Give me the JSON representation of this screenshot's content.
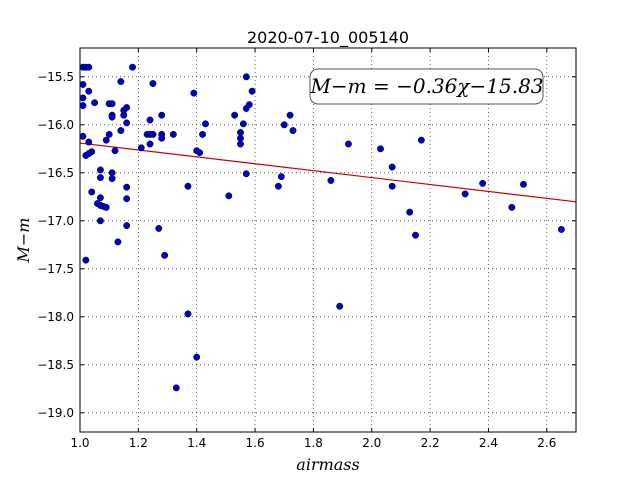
{
  "chart_data": {
    "type": "scatter",
    "title": "2020-07-10_005140",
    "xlabel": "airmass",
    "ylabel": "M−m",
    "xlim": [
      1.0,
      2.7
    ],
    "ylim": [
      -15.2,
      -19.2
    ],
    "y_inverted": true,
    "grid": true,
    "grid_style": "dotted",
    "x_ticks": [
      1.0,
      1.2,
      1.4,
      1.6,
      1.8,
      2.0,
      2.2,
      2.4,
      2.6
    ],
    "x_tick_labels": [
      "1.0",
      "1.2",
      "1.4",
      "1.6",
      "1.8",
      "2.0",
      "2.2",
      "2.4",
      "2.6"
    ],
    "y_ticks": [
      -15.5,
      -16.0,
      -16.5,
      -17.0,
      -17.5,
      -18.0,
      -18.5,
      -19.0
    ],
    "y_tick_labels": [
      "−15.5",
      "−16.0",
      "−16.5",
      "−17.0",
      "−17.5",
      "−18.0",
      "−18.5",
      "−19.0"
    ],
    "point_color": "#0000cc",
    "fit_color": "#cc0000",
    "fit_line": {
      "slope": -0.36,
      "intercept": -15.83
    },
    "annotation": "M−m = −0.36χ−15.83",
    "points": [
      {
        "x": 1.01,
        "y": -15.4
      },
      {
        "x": 1.02,
        "y": -15.4
      },
      {
        "x": 1.03,
        "y": -15.4
      },
      {
        "x": 1.01,
        "y": -15.58
      },
      {
        "x": 1.03,
        "y": -15.65
      },
      {
        "x": 1.01,
        "y": -15.72
      },
      {
        "x": 1.01,
        "y": -15.8
      },
      {
        "x": 1.05,
        "y": -15.77
      },
      {
        "x": 1.01,
        "y": -16.12
      },
      {
        "x": 1.03,
        "y": -16.18
      },
      {
        "x": 1.04,
        "y": -16.28
      },
      {
        "x": 1.02,
        "y": -16.32
      },
      {
        "x": 1.03,
        "y": -16.3
      },
      {
        "x": 1.04,
        "y": -16.7
      },
      {
        "x": 1.06,
        "y": -16.82
      },
      {
        "x": 1.07,
        "y": -16.76
      },
      {
        "x": 1.07,
        "y": -16.84
      },
      {
        "x": 1.08,
        "y": -16.85
      },
      {
        "x": 1.09,
        "y": -16.86
      },
      {
        "x": 1.07,
        "y": -17.0
      },
      {
        "x": 1.07,
        "y": -16.47
      },
      {
        "x": 1.07,
        "y": -16.55
      },
      {
        "x": 1.09,
        "y": -16.16
      },
      {
        "x": 1.1,
        "y": -15.78
      },
      {
        "x": 1.11,
        "y": -15.78
      },
      {
        "x": 1.11,
        "y": -15.9
      },
      {
        "x": 1.11,
        "y": -15.92
      },
      {
        "x": 1.1,
        "y": -16.1
      },
      {
        "x": 1.12,
        "y": -16.27
      },
      {
        "x": 1.11,
        "y": -16.5
      },
      {
        "x": 1.11,
        "y": -16.56
      },
      {
        "x": 1.14,
        "y": -15.55
      },
      {
        "x": 1.15,
        "y": -15.85
      },
      {
        "x": 1.16,
        "y": -15.82
      },
      {
        "x": 1.15,
        "y": -15.9
      },
      {
        "x": 1.16,
        "y": -15.98
      },
      {
        "x": 1.14,
        "y": -16.06
      },
      {
        "x": 1.16,
        "y": -16.65
      },
      {
        "x": 1.16,
        "y": -16.77
      },
      {
        "x": 1.16,
        "y": -17.05
      },
      {
        "x": 1.13,
        "y": -17.22
      },
      {
        "x": 1.02,
        "y": -17.41
      },
      {
        "x": 1.18,
        "y": -15.4
      },
      {
        "x": 1.21,
        "y": -16.24
      },
      {
        "x": 1.23,
        "y": -16.1
      },
      {
        "x": 1.24,
        "y": -15.95
      },
      {
        "x": 1.24,
        "y": -16.1
      },
      {
        "x": 1.25,
        "y": -16.1
      },
      {
        "x": 1.24,
        "y": -16.2
      },
      {
        "x": 1.25,
        "y": -15.57
      },
      {
        "x": 1.28,
        "y": -15.9
      },
      {
        "x": 1.28,
        "y": -16.1
      },
      {
        "x": 1.28,
        "y": -16.14
      },
      {
        "x": 1.27,
        "y": -17.08
      },
      {
        "x": 1.29,
        "y": -17.36
      },
      {
        "x": 1.32,
        "y": -16.1
      },
      {
        "x": 1.33,
        "y": -18.74
      },
      {
        "x": 1.37,
        "y": -16.64
      },
      {
        "x": 1.37,
        "y": -17.97
      },
      {
        "x": 1.39,
        "y": -15.67
      },
      {
        "x": 1.4,
        "y": -16.27
      },
      {
        "x": 1.41,
        "y": -16.29
      },
      {
        "x": 1.42,
        "y": -16.1
      },
      {
        "x": 1.43,
        "y": -15.99
      },
      {
        "x": 1.4,
        "y": -18.42
      },
      {
        "x": 1.51,
        "y": -16.74
      },
      {
        "x": 1.53,
        "y": -15.9
      },
      {
        "x": 1.55,
        "y": -16.08
      },
      {
        "x": 1.55,
        "y": -16.14
      },
      {
        "x": 1.56,
        "y": -15.99
      },
      {
        "x": 1.55,
        "y": -16.2
      },
      {
        "x": 1.57,
        "y": -15.5
      },
      {
        "x": 1.58,
        "y": -15.79
      },
      {
        "x": 1.57,
        "y": -15.83
      },
      {
        "x": 1.59,
        "y": -15.65
      },
      {
        "x": 1.57,
        "y": -16.51
      },
      {
        "x": 1.68,
        "y": -16.64
      },
      {
        "x": 1.69,
        "y": -16.54
      },
      {
        "x": 1.7,
        "y": -16.0
      },
      {
        "x": 1.72,
        "y": -15.9
      },
      {
        "x": 1.73,
        "y": -16.06
      },
      {
        "x": 1.86,
        "y": -16.58
      },
      {
        "x": 1.89,
        "y": -17.89
      },
      {
        "x": 1.92,
        "y": -16.2
      },
      {
        "x": 2.03,
        "y": -16.25
      },
      {
        "x": 2.07,
        "y": -16.64
      },
      {
        "x": 2.07,
        "y": -16.44
      },
      {
        "x": 2.13,
        "y": -16.91
      },
      {
        "x": 2.15,
        "y": -17.15
      },
      {
        "x": 2.17,
        "y": -16.16
      },
      {
        "x": 2.32,
        "y": -16.72
      },
      {
        "x": 2.38,
        "y": -16.61
      },
      {
        "x": 2.48,
        "y": -16.86
      },
      {
        "x": 2.52,
        "y": -16.62
      },
      {
        "x": 2.65,
        "y": -17.09
      }
    ]
  }
}
